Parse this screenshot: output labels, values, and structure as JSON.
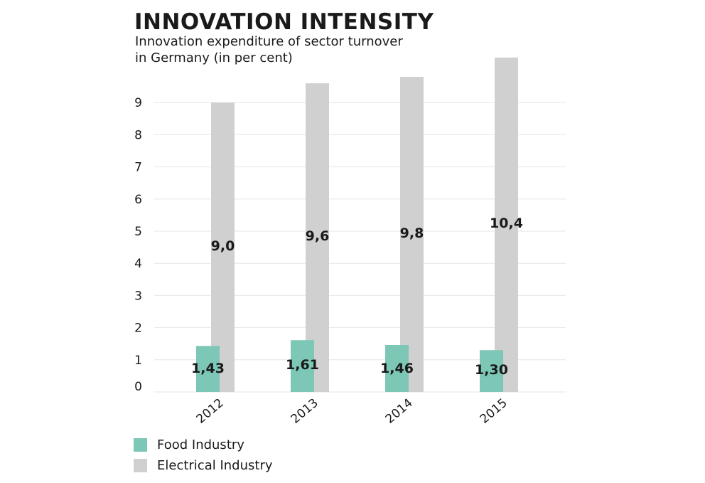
{
  "title": "INNOVATION INTENSITY",
  "subtitle_lines": [
    "Innovation expenditure of sector turnover",
    "in Germany (in per cent)"
  ],
  "colors": {
    "food": "#7cc7b6",
    "electrical": "#d0d0d0",
    "grid": "#e6e6e6",
    "text": "#1a1a1a"
  },
  "chart_data": {
    "type": "bar",
    "title": "INNOVATION INTENSITY",
    "subtitle": "Innovation expenditure of sector turnover in Germany (in per cent)",
    "categories": [
      "2012",
      "2013",
      "2014",
      "2015"
    ],
    "series": [
      {
        "name": "Food Industry",
        "values": [
          1.43,
          1.61,
          1.46,
          1.3
        ],
        "labels": [
          "1,43",
          "1,61",
          "1,46",
          "1,30"
        ]
      },
      {
        "name": "Electrical Industry",
        "values": [
          9.0,
          9.6,
          9.8,
          10.4
        ],
        "labels": [
          "9,0",
          "9,6",
          "9,8",
          "10,4"
        ]
      }
    ],
    "y_ticks": [
      "0",
      "1",
      "2",
      "3",
      "4",
      "5",
      "6",
      "7",
      "8",
      "9"
    ],
    "ylim": [
      0,
      10.4
    ],
    "grid": true,
    "legend_position": "bottom-left",
    "xlabel": "",
    "ylabel": ""
  }
}
